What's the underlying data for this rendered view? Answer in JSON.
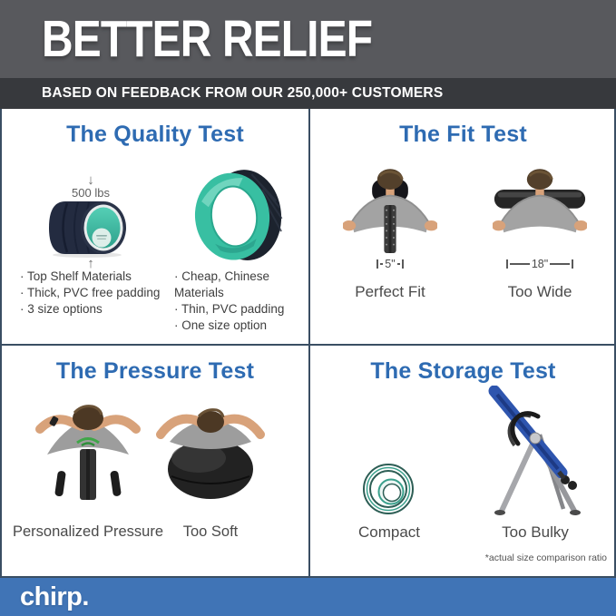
{
  "header": {
    "title": "BETTER RELIEF",
    "subtitle": "BASED ON FEEDBACK FROM OUR 250,000+ CUSTOMERS"
  },
  "icons": {
    "down_arrow": "↓",
    "up_arrow": "↑"
  },
  "quadrants": {
    "quality": {
      "title": "The Quality Test",
      "load_label": "500 lbs",
      "left_bullets": [
        "Top Shelf Materials",
        "Thick, PVC free padding",
        "3 size options"
      ],
      "right_bullets": [
        "Cheap, Chinese Materials",
        "Thin, PVC padding",
        "One size option"
      ]
    },
    "fit": {
      "title": "The Fit Test",
      "left_measure": "5\"",
      "right_measure": "18\"",
      "left_caption": "Perfect Fit",
      "right_caption": "Too Wide"
    },
    "pressure": {
      "title": "The Pressure Test",
      "left_caption": "Personalized Pressure",
      "right_caption": "Too Soft"
    },
    "storage": {
      "title": "The Storage Test",
      "left_caption": "Compact",
      "right_caption": "Too Bulky",
      "footnote": "*actual size comparison ratio"
    }
  },
  "footer": {
    "logo": "chirp."
  },
  "colors": {
    "header_bg": "#58595d",
    "band_bg": "#37393d",
    "accent_blue": "#2e6bb2",
    "divider": "#3a4e63",
    "footer_bg": "#4074b6",
    "teal": "#3fc3a8",
    "navy": "#232b40"
  }
}
